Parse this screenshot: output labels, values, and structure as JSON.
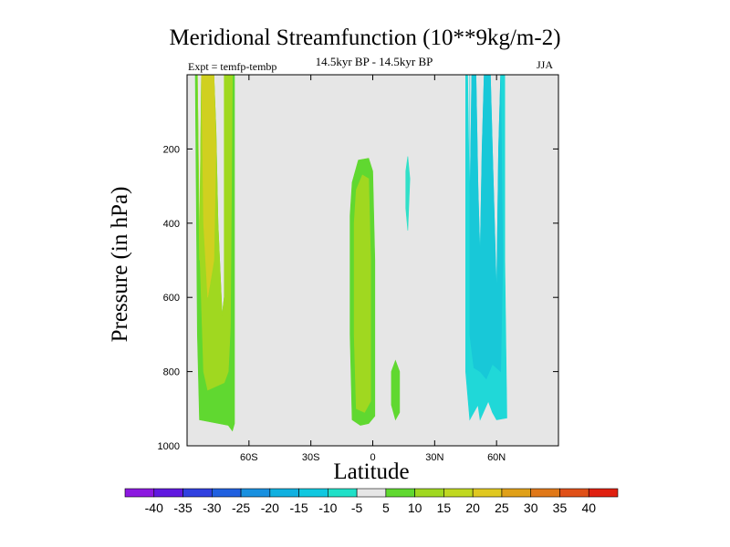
{
  "chart_data": {
    "type": "heatmap",
    "title": "Meridional Streamfunction (10**9kg/m-2)",
    "subtitle_left": "Expt = temfp-tembp",
    "subtitle_center": "14.5kyr BP - 14.5kyr BP",
    "subtitle_right": "JJA",
    "xlabel": "Latitude",
    "ylabel": "Pressure (in hPa)",
    "xlim": [
      -90,
      90
    ],
    "ylim": [
      1000,
      0
    ],
    "x_ticks": [
      {
        "value": -60,
        "label": "60S"
      },
      {
        "value": -30,
        "label": "30S"
      },
      {
        "value": 0,
        "label": "0"
      },
      {
        "value": 30,
        "label": "30N"
      },
      {
        "value": 60,
        "label": "60N"
      }
    ],
    "y_ticks": [
      {
        "value": 200,
        "label": "200"
      },
      {
        "value": 400,
        "label": "400"
      },
      {
        "value": 600,
        "label": "600"
      },
      {
        "value": 800,
        "label": "800"
      },
      {
        "value": 1000,
        "label": "1000"
      }
    ],
    "background_color": "#e6e6e6",
    "regions": [
      {
        "name": "sh-high-lat-outer",
        "value": 7.5,
        "color": "#60d830",
        "polygon": [
          [
            -86,
            0
          ],
          [
            -85,
            700
          ],
          [
            -84,
            930
          ],
          [
            -70,
            945
          ],
          [
            -68,
            960
          ],
          [
            -67,
            940
          ],
          [
            -67,
            0
          ],
          [
            -69,
            0
          ],
          [
            -69,
            680
          ],
          [
            -70,
            800
          ],
          [
            -72,
            600
          ],
          [
            -73,
            650
          ],
          [
            -75,
            400
          ],
          [
            -76,
            150
          ],
          [
            -77,
            0
          ],
          [
            -83,
            0
          ],
          [
            -84,
            500
          ],
          [
            -85,
            0
          ]
        ]
      },
      {
        "name": "sh-high-lat-mid",
        "value": 12.5,
        "color": "#a0d820",
        "polygon": [
          [
            -85,
            0
          ],
          [
            -84,
            500
          ],
          [
            -83,
            0
          ],
          [
            -77,
            0
          ],
          [
            -76,
            150
          ],
          [
            -75,
            400
          ],
          [
            -73,
            650
          ],
          [
            -72,
            600
          ],
          [
            -72,
            0
          ],
          [
            -68,
            0
          ],
          [
            -69,
            680
          ],
          [
            -70,
            800
          ],
          [
            -72,
            830
          ],
          [
            -80,
            850
          ],
          [
            -82,
            800
          ],
          [
            -84,
            450
          ]
        ]
      },
      {
        "name": "sh-high-lat-core",
        "value": 17.5,
        "color": "#d0d020",
        "polygon": [
          [
            -83,
            0
          ],
          [
            -82,
            400
          ],
          [
            -80,
            600
          ],
          [
            -77,
            500
          ],
          [
            -76,
            200
          ],
          [
            -77,
            0
          ]
        ]
      },
      {
        "name": "eq-cell-outer",
        "value": 7.5,
        "color": "#60d830",
        "polygon": [
          [
            -11,
            380
          ],
          [
            -10,
            290
          ],
          [
            -7,
            230
          ],
          [
            -2,
            225
          ],
          [
            0,
            260
          ],
          [
            1,
            500
          ],
          [
            1,
            920
          ],
          [
            -2,
            940
          ],
          [
            -6,
            945
          ],
          [
            -10,
            930
          ],
          [
            -11,
            700
          ]
        ]
      },
      {
        "name": "eq-cell-inner",
        "value": 12.5,
        "color": "#a0d820",
        "polygon": [
          [
            -9,
            400
          ],
          [
            -8,
            310
          ],
          [
            -5,
            270
          ],
          [
            -2,
            280
          ],
          [
            -1,
            500
          ],
          [
            -1,
            880
          ],
          [
            -4,
            910
          ],
          [
            -8,
            900
          ],
          [
            -9,
            700
          ]
        ]
      },
      {
        "name": "nh-small-upper",
        "value": -2.5,
        "color": "#30e0c8",
        "polygon": [
          [
            16,
            260
          ],
          [
            17,
            220
          ],
          [
            18,
            280
          ],
          [
            17,
            420
          ],
          [
            16,
            360
          ]
        ]
      },
      {
        "name": "nh-small-lower",
        "value": 7.5,
        "color": "#60d830",
        "polygon": [
          [
            9,
            800
          ],
          [
            11,
            770
          ],
          [
            13,
            800
          ],
          [
            13,
            910
          ],
          [
            11,
            930
          ],
          [
            9,
            890
          ]
        ]
      },
      {
        "name": "nh-high-lat-outer",
        "value": -7.5,
        "color": "#20d8d8",
        "polygon": [
          [
            45,
            0
          ],
          [
            45,
            800
          ],
          [
            47,
            930
          ],
          [
            48,
            920
          ],
          [
            51,
            890
          ],
          [
            52,
            930
          ],
          [
            56,
            880
          ],
          [
            58,
            910
          ],
          [
            60,
            930
          ],
          [
            65,
            925
          ],
          [
            64,
            500
          ],
          [
            64,
            0
          ],
          [
            62,
            0
          ],
          [
            61,
            200
          ],
          [
            60,
            600
          ],
          [
            59,
            400
          ],
          [
            58,
            200
          ],
          [
            57,
            0
          ],
          [
            54,
            0
          ],
          [
            53,
            200
          ],
          [
            52,
            500
          ],
          [
            51,
            300
          ],
          [
            50,
            0
          ],
          [
            48,
            0
          ],
          [
            47,
            400
          ],
          [
            46,
            0
          ]
        ]
      },
      {
        "name": "nh-high-lat-inner",
        "value": -12.5,
        "color": "#18c8d8",
        "polygon": [
          [
            47,
            0
          ],
          [
            47,
            400
          ],
          [
            48,
            0
          ],
          [
            50,
            0
          ],
          [
            51,
            300
          ],
          [
            52,
            500
          ],
          [
            53,
            200
          ],
          [
            54,
            0
          ],
          [
            57,
            0
          ],
          [
            58,
            200
          ],
          [
            59,
            400
          ],
          [
            60,
            600
          ],
          [
            61,
            200
          ],
          [
            62,
            0
          ],
          [
            63,
            500
          ],
          [
            62,
            800
          ],
          [
            58,
            780
          ],
          [
            55,
            820
          ],
          [
            52,
            800
          ],
          [
            49,
            790
          ],
          [
            47,
            700
          ]
        ]
      }
    ],
    "colorbar": {
      "levels": [
        -40,
        -35,
        -30,
        -25,
        -20,
        -15,
        -10,
        -5,
        5,
        10,
        15,
        20,
        25,
        30,
        35,
        40
      ],
      "colors": [
        "#8c18e0",
        "#6018e0",
        "#3040e0",
        "#2060e0",
        "#1890e0",
        "#10b0e0",
        "#10c8e0",
        "#20e0c8",
        "#e6e6e6",
        "#60d830",
        "#a0d820",
        "#c0d820",
        "#e0c820",
        "#e0a018",
        "#e07818",
        "#e05018",
        "#e02010"
      ]
    }
  }
}
